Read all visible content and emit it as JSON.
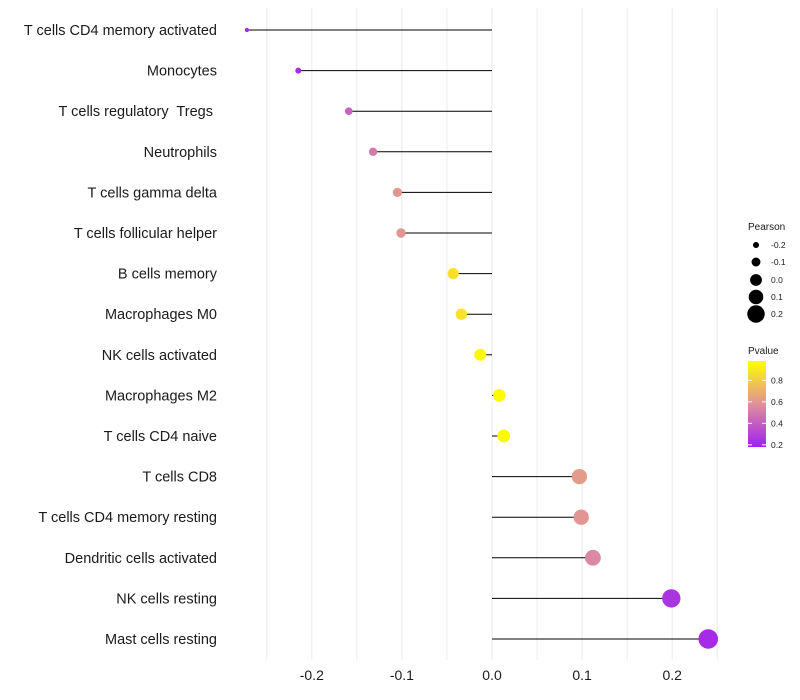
{
  "chart_data": {
    "type": "lollipop",
    "x_ticks": [
      -0.2,
      -0.1,
      0.0,
      0.1,
      0.2
    ],
    "x_tick_labels": [
      "-0.2",
      "-0.1",
      "0.0",
      "0.1",
      "0.2"
    ],
    "xlim": [
      -0.3,
      0.26
    ],
    "cells": [
      {
        "name": "T cells CD4 memory activated",
        "pearson": -0.272,
        "pvalue": 0.22
      },
      {
        "name": "Monocytes",
        "pearson": -0.215,
        "pvalue": 0.22
      },
      {
        "name": "T cells regulatory  Tregs ",
        "pearson": -0.159,
        "pvalue": 0.42
      },
      {
        "name": "Neutrophils",
        "pearson": -0.132,
        "pvalue": 0.5
      },
      {
        "name": "T cells gamma delta",
        "pearson": -0.105,
        "pvalue": 0.6
      },
      {
        "name": "T cells follicular helper",
        "pearson": -0.101,
        "pvalue": 0.6
      },
      {
        "name": "B cells memory",
        "pearson": -0.043,
        "pvalue": 0.87
      },
      {
        "name": "Macrophages M0",
        "pearson": -0.034,
        "pvalue": 0.88
      },
      {
        "name": "NK cells activated",
        "pearson": -0.013,
        "pvalue": 0.96
      },
      {
        "name": "Macrophages M2",
        "pearson": 0.008,
        "pvalue": 0.97
      },
      {
        "name": "T cells CD4 naive",
        "pearson": 0.013,
        "pvalue": 0.96
      },
      {
        "name": "T cells CD8",
        "pearson": 0.097,
        "pvalue": 0.62
      },
      {
        "name": "T cells CD4 memory resting",
        "pearson": 0.099,
        "pvalue": 0.6
      },
      {
        "name": "Dendritic cells activated",
        "pearson": 0.112,
        "pvalue": 0.55
      },
      {
        "name": "NK cells resting",
        "pearson": 0.199,
        "pvalue": 0.25
      },
      {
        "name": "Mast cells resting",
        "pearson": 0.24,
        "pvalue": 0.22
      }
    ],
    "legend_size": {
      "title": "Pearson",
      "labels": [
        "-0.2",
        "-0.1",
        "0.0",
        "0.1",
        "0.2"
      ],
      "values": [
        -0.2,
        -0.1,
        0.0,
        0.1,
        0.2
      ]
    },
    "legend_color": {
      "title": "Pvalue",
      "labels": [
        "0.8",
        "0.6",
        "0.4",
        "0.2"
      ],
      "values": [
        0.8,
        0.6,
        0.4,
        0.2
      ],
      "range": [
        0.18,
        0.98
      ],
      "color_low": "#a020f0",
      "color_mid": "#e0909a",
      "color_high": "#ffff00"
    },
    "colors": {
      "stem": "#000000",
      "grid": "#ebebeb",
      "background": "#ffffff"
    }
  }
}
